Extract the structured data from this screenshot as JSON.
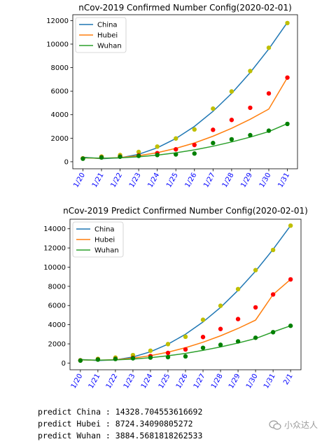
{
  "chart_data": [
    {
      "type": "line",
      "title": "nCov-2019 Confirmed Number Config(2020-02-01)",
      "categories": [
        "1/20",
        "1/21",
        "1/22",
        "1/23",
        "1/24",
        "1/25",
        "1/26",
        "1/27",
        "1/28",
        "1/29",
        "1/30",
        "1/31"
      ],
      "ylim": [
        -600,
        12500
      ],
      "yticks": [
        0,
        2000,
        4000,
        6000,
        8000,
        10000,
        12000
      ],
      "grid": false,
      "legend": "upper-left",
      "series": [
        {
          "name": "China",
          "color": "#1f77b4",
          "marker_color": "#bfbf00",
          "points": [
            291,
            440,
            571,
            830,
            1287,
            1975,
            2744,
            4515,
            5974,
            7711,
            9692,
            11791
          ],
          "fit": [
            380,
            260,
            330,
            630,
            1180,
            1970,
            3000,
            4280,
            5810,
            7580,
            9590,
            11850
          ]
        },
        {
          "name": "Hubei",
          "color": "#ff7f0e",
          "marker_color": "#ff0000",
          "points": [
            270,
            375,
            444,
            549,
            729,
            1052,
            1423,
            2714,
            3554,
            4586,
            5806,
            7153
          ],
          "fit": [
            330,
            290,
            350,
            510,
            770,
            1130,
            1600,
            2170,
            2840,
            3610,
            4480,
            7150
          ]
        },
        {
          "name": "Wuhan",
          "color": "#2ca02c",
          "marker_color": "#008000",
          "points": [
            258,
            363,
            425,
            495,
            572,
            618,
            698,
            1590,
            1905,
            2261,
            2639,
            3215
          ],
          "fit": [
            340,
            300,
            330,
            420,
            560,
            760,
            1010,
            1320,
            1680,
            2090,
            2560,
            3240
          ]
        }
      ]
    },
    {
      "type": "line",
      "title": "nCov-2019 Predict Confirmed Number Config(2020-02-01)",
      "categories": [
        "1/20",
        "1/21",
        "1/22",
        "1/23",
        "1/24",
        "1/25",
        "1/26",
        "1/27",
        "1/28",
        "1/29",
        "1/30",
        "1/31",
        "2/1"
      ],
      "ylim": [
        -700,
        15000
      ],
      "yticks": [
        0,
        2000,
        4000,
        6000,
        8000,
        10000,
        12000,
        14000
      ],
      "grid": false,
      "legend": "upper-left",
      "series": [
        {
          "name": "China",
          "color": "#1f77b4",
          "marker_color": "#bfbf00",
          "points": [
            291,
            440,
            571,
            830,
            1287,
            1975,
            2744,
            4515,
            5974,
            7711,
            9692,
            11791,
            14328.704553616692
          ],
          "fit": [
            380,
            260,
            330,
            630,
            1180,
            1970,
            3000,
            4280,
            5810,
            7580,
            9590,
            11850,
            14328.7
          ]
        },
        {
          "name": "Hubei",
          "color": "#ff7f0e",
          "marker_color": "#ff0000",
          "points": [
            270,
            375,
            444,
            549,
            729,
            1052,
            1423,
            2714,
            3554,
            4586,
            5806,
            7153,
            8724.34090805272
          ],
          "fit": [
            330,
            290,
            350,
            510,
            770,
            1130,
            1600,
            2170,
            2840,
            3610,
            4480,
            7150,
            8724.3
          ]
        },
        {
          "name": "Wuhan",
          "color": "#2ca02c",
          "marker_color": "#008000",
          "points": [
            258,
            363,
            425,
            495,
            572,
            618,
            698,
            1590,
            1905,
            2261,
            2639,
            3215,
            3884.5681818262533
          ],
          "fit": [
            340,
            300,
            330,
            420,
            560,
            760,
            1010,
            1320,
            1680,
            2090,
            2560,
            3240,
            3884.6
          ]
        }
      ]
    }
  ],
  "output_lines": [
    "predict China : 14328.704553616692",
    "predict Hubei : 8724.34090805272",
    "predict Wuhan : 3884.5681818262533"
  ],
  "tick_label_color": "#0000ff",
  "watermark": {
    "text": "小众达人",
    "icon": "wechat-icon"
  }
}
